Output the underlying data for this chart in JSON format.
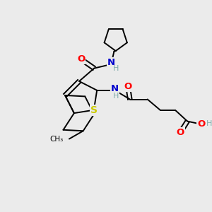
{
  "bg_color": "#ebebeb",
  "atom_colors": {
    "C": "#000000",
    "N": "#0000cd",
    "O": "#ff0000",
    "S": "#cccc00",
    "H": "#7faaaa"
  },
  "bond_color": "#000000"
}
